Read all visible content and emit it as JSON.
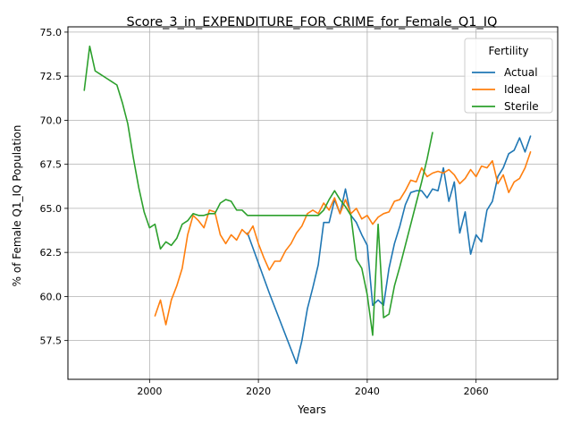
{
  "chart_data": {
    "type": "line",
    "title": "Score_3_in_EXPENDITURE_FOR_CRIME_for_Female_Q1_IQ",
    "xlabel": "Years",
    "ylabel": "% of Female Q1_IQ Population",
    "xlim": [
      1985,
      2075
    ],
    "ylim": [
      55.3,
      75.3
    ],
    "xticks": [
      2000,
      2020,
      2040,
      2060
    ],
    "xtick_labels": [
      "2000",
      "2020",
      "2040",
      "2060"
    ],
    "yticks": [
      57.5,
      60.0,
      62.5,
      65.0,
      67.5,
      70.0,
      72.5,
      75.0
    ],
    "ytick_labels": [
      "57.5",
      "60.0",
      "62.5",
      "65.0",
      "67.5",
      "70.0",
      "72.5",
      "75.0"
    ],
    "grid": true,
    "legend": {
      "title": "Fertility",
      "placement": "top-right"
    },
    "series": [
      {
        "name": "Actual",
        "color": "#1f77b4",
        "x": [
          2018,
          2020,
          2022,
          2024,
          2026,
          2027,
          2028,
          2029,
          2030,
          2031,
          2032,
          2033,
          2034,
          2035,
          2036,
          2037,
          2038,
          2039,
          2040,
          2041,
          2042,
          2043,
          2044,
          2045,
          2046,
          2047,
          2048,
          2049,
          2050,
          2051,
          2052,
          2053,
          2054,
          2055,
          2056,
          2057,
          2058,
          2059,
          2060,
          2061,
          2062,
          2063,
          2064,
          2065,
          2066,
          2067,
          2068,
          2069,
          2070
        ],
        "y": [
          63.6,
          61.9,
          60.2,
          58.6,
          57.0,
          56.2,
          57.5,
          59.3,
          60.5,
          61.8,
          64.2,
          64.2,
          65.5,
          64.7,
          66.1,
          64.6,
          64.2,
          63.5,
          62.9,
          59.5,
          59.8,
          59.5,
          61.6,
          63.0,
          64.0,
          65.2,
          65.9,
          66.0,
          66.0,
          65.6,
          66.1,
          66.0,
          67.3,
          65.4,
          66.5,
          63.6,
          64.8,
          62.4,
          63.5,
          63.1,
          64.9,
          65.4,
          66.8,
          67.3,
          68.1,
          68.3,
          69.0,
          68.2,
          69.1
        ]
      },
      {
        "name": "Ideal",
        "color": "#ff7f0e",
        "x": [
          2001,
          2002,
          2003,
          2004,
          2005,
          2006,
          2007,
          2008,
          2009,
          2010,
          2011,
          2012,
          2013,
          2014,
          2015,
          2016,
          2017,
          2018,
          2019,
          2020,
          2021,
          2022,
          2023,
          2024,
          2025,
          2026,
          2027,
          2028,
          2029,
          2030,
          2031,
          2032,
          2033,
          2034,
          2035,
          2036,
          2037,
          2038,
          2039,
          2040,
          2041,
          2042,
          2043,
          2044,
          2045,
          2046,
          2047,
          2048,
          2049,
          2050,
          2051,
          2052,
          2053,
          2054,
          2055,
          2056,
          2057,
          2058,
          2059,
          2060,
          2061,
          2062,
          2063,
          2064,
          2065,
          2066,
          2067,
          2068,
          2069,
          2070
        ],
        "y": [
          58.9,
          59.8,
          58.4,
          59.8,
          60.6,
          61.6,
          63.5,
          64.6,
          64.3,
          63.9,
          64.9,
          64.8,
          63.5,
          63.0,
          63.5,
          63.2,
          63.8,
          63.5,
          64.0,
          63.0,
          62.2,
          61.5,
          62.0,
          62.0,
          62.6,
          63.0,
          63.6,
          64.0,
          64.7,
          64.9,
          64.7,
          65.3,
          64.9,
          65.6,
          64.7,
          65.5,
          64.7,
          65.0,
          64.4,
          64.6,
          64.1,
          64.5,
          64.7,
          64.8,
          65.4,
          65.5,
          66.0,
          66.6,
          66.5,
          67.3,
          66.8,
          67.0,
          67.1,
          67.0,
          67.2,
          66.9,
          66.4,
          66.7,
          67.2,
          66.8,
          67.4,
          67.3,
          67.7,
          66.4,
          66.9,
          65.9,
          66.5,
          66.7,
          67.3,
          68.2
        ]
      },
      {
        "name": "Sterile",
        "color": "#2ca02c",
        "x": [
          1988,
          1989,
          1990,
          1991,
          1992,
          1993,
          1994,
          1995,
          1996,
          1997,
          1998,
          1999,
          2000,
          2001,
          2002,
          2003,
          2004,
          2005,
          2006,
          2007,
          2008,
          2009,
          2010,
          2011,
          2012,
          2013,
          2014,
          2015,
          2016,
          2017,
          2018,
          2019,
          2020,
          2022,
          2024,
          2026,
          2028,
          2030,
          2031,
          2032,
          2033,
          2034,
          2035,
          2036,
          2037,
          2038,
          2039,
          2040,
          2041,
          2042,
          2043,
          2044,
          2045,
          2046,
          2047,
          2048,
          2049,
          2050,
          2051,
          2052
        ],
        "y": [
          71.7,
          74.2,
          72.8,
          72.6,
          72.4,
          72.2,
          72.0,
          71.0,
          69.8,
          67.9,
          66.2,
          64.8,
          63.9,
          64.1,
          62.7,
          63.1,
          62.9,
          63.3,
          64.1,
          64.3,
          64.7,
          64.6,
          64.6,
          64.7,
          64.7,
          65.3,
          65.5,
          65.4,
          64.9,
          64.9,
          64.6,
          64.6,
          64.6,
          64.6,
          64.6,
          64.6,
          64.6,
          64.6,
          64.6,
          64.9,
          65.5,
          66.0,
          65.5,
          65.1,
          64.6,
          62.1,
          61.6,
          60.1,
          57.8,
          64.1,
          58.8,
          59.0,
          60.6,
          61.7,
          62.9,
          64.1,
          65.3,
          66.5,
          67.8,
          69.3
        ]
      }
    ]
  }
}
